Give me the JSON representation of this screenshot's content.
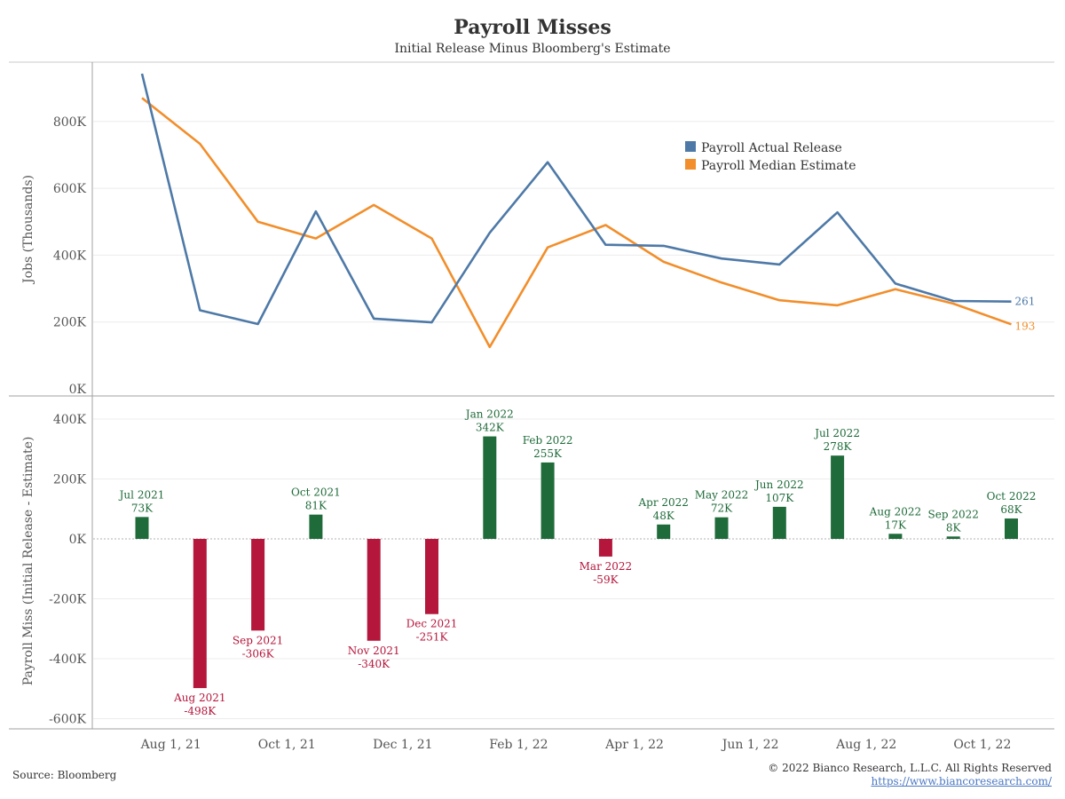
{
  "header": {
    "title": "Payroll Misses",
    "subtitle": "Initial Release Minus Bloomberg's Estimate"
  },
  "footer": {
    "source": "Source: Bloomberg",
    "copyright": "© 2022 Bianco Research, L.L.C. All Rights Reserved",
    "website": "https://www.biancoresearch.com/"
  },
  "colors": {
    "actual": "#4e79a7",
    "estimate": "#f28e2b",
    "positive": "#1f6b3a",
    "negative": "#b5163b"
  },
  "chart_data": [
    {
      "type": "line",
      "ylabel": "Jobs (Thousands)",
      "ylim": [
        0,
        950
      ],
      "yticks": [
        0,
        200,
        400,
        600,
        800
      ],
      "ytick_labels": [
        "0K",
        "200K",
        "400K",
        "600K",
        "800K"
      ],
      "grid": true,
      "legend_position": "top-right",
      "x": [
        "Jul 2021",
        "Aug 2021",
        "Sep 2021",
        "Oct 2021",
        "Nov 2021",
        "Dec 2021",
        "Jan 2022",
        "Feb 2022",
        "Mar 2022",
        "Apr 2022",
        "May 2022",
        "Jun 2022",
        "Jul 2022",
        "Aug 2022",
        "Sep 2022",
        "Oct 2022"
      ],
      "series": [
        {
          "name": "Payroll Actual Release",
          "values": [
            943,
            235,
            194,
            531,
            210,
            199,
            467,
            678,
            431,
            428,
            390,
            372,
            528,
            315,
            263,
            261
          ],
          "end_label": "261"
        },
        {
          "name": "Payroll Median Estimate",
          "values": [
            870,
            733,
            500,
            450,
            550,
            450,
            125,
            423,
            490,
            380,
            318,
            265,
            250,
            298,
            255,
            193
          ],
          "end_label": "193"
        }
      ]
    },
    {
      "type": "bar",
      "ylabel": "Payroll Miss (Initial Release - Estimate)",
      "ylim": [
        -640,
        440
      ],
      "yticks": [
        -600,
        -400,
        -200,
        0,
        200,
        400
      ],
      "ytick_labels": [
        "-600K",
        "-400K",
        "-200K",
        "0K",
        "200K",
        "400K"
      ],
      "grid": true,
      "categories": [
        "Jul 2021",
        "Aug 2021",
        "Sep 2021",
        "Oct 2021",
        "Nov 2021",
        "Dec 2021",
        "Jan 2022",
        "Feb 2022",
        "Mar 2022",
        "Apr 2022",
        "May 2022",
        "Jun 2022",
        "Jul 2022",
        "Aug 2022",
        "Sep 2022",
        "Oct 2022"
      ],
      "values": [
        73,
        -498,
        -306,
        81,
        -340,
        -251,
        342,
        255,
        -59,
        48,
        72,
        107,
        278,
        17,
        8,
        68
      ],
      "value_labels": [
        "73K",
        "-498K",
        "-306K",
        "81K",
        "-340K",
        "-251K",
        "342K",
        "255K",
        "-59K",
        "48K",
        "72K",
        "107K",
        "278K",
        "17K",
        "8K",
        "68K"
      ]
    }
  ],
  "x_axis": {
    "tick_labels": [
      "Aug 1, 21",
      "Oct 1, 21",
      "Dec 1, 21",
      "Feb 1, 22",
      "Apr 1, 22",
      "Jun 1, 22",
      "Aug 1, 22",
      "Oct 1, 22"
    ]
  }
}
